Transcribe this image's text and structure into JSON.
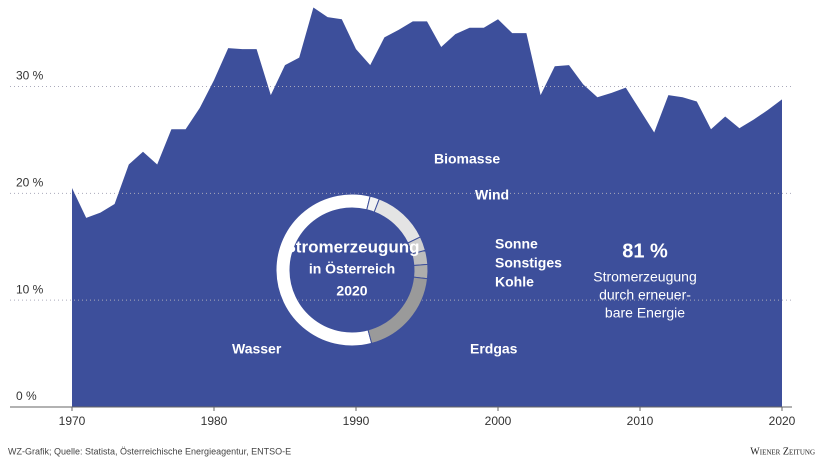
{
  "chart_data": [
    {
      "type": "area",
      "color": "#3d4f9b",
      "x": [
        1970,
        1971,
        1972,
        1973,
        1974,
        1975,
        1976,
        1977,
        1978,
        1979,
        1980,
        1981,
        1982,
        1983,
        1984,
        1985,
        1986,
        1987,
        1988,
        1989,
        1990,
        1991,
        1992,
        1993,
        1994,
        1995,
        1996,
        1997,
        1998,
        1999,
        2000,
        2001,
        2002,
        2003,
        2004,
        2005,
        2006,
        2007,
        2008,
        2009,
        2010,
        2011,
        2012,
        2013,
        2014,
        2015,
        2016,
        2017,
        2018,
        2019,
        2020
      ],
      "values": [
        20.5,
        17.7,
        18.2,
        19,
        22.7,
        23.9,
        22.7,
        26,
        26,
        28,
        30.6,
        33.6,
        33.5,
        33.5,
        29.2,
        32,
        32.7,
        37.4,
        36.5,
        36.3,
        33.5,
        32,
        34.6,
        35.3,
        36.1,
        36.1,
        33.7,
        34.9,
        35.5,
        35.5,
        36.3,
        35,
        35,
        29.2,
        31.9,
        32,
        30.2,
        29,
        29.4,
        29.9,
        27.8,
        25.7,
        29.2,
        29,
        28.6,
        26,
        27.2,
        26.1,
        26.9,
        27.8,
        28.8
      ],
      "xlim": [
        1970,
        2020
      ],
      "xticks": [
        1970,
        1980,
        1990,
        2000,
        2010,
        2020
      ],
      "ylim": [
        0,
        38.1
      ],
      "yticks": [
        {
          "value": 0,
          "label": "0 %"
        },
        {
          "value": 10,
          "label": "10 %"
        },
        {
          "value": 20,
          "label": "20 %"
        },
        {
          "value": 30,
          "label": "30 %"
        }
      ],
      "grid": true,
      "annotation": {
        "value": 81,
        "label": "81 %",
        "text": [
          "Stromerzeugung",
          "durch erneuer-",
          "bare Energie"
        ]
      }
    },
    {
      "type": "donut",
      "title": [
        "Stromerzeugung",
        "in Österreich",
        "2020"
      ],
      "categories": [
        "Wasser",
        "Biomasse",
        "Wind",
        "Sonne",
        "Sonstiges",
        "Kohle",
        "Erdgas"
      ],
      "values": [
        58,
        2,
        12,
        3,
        3,
        3,
        19
      ],
      "colors": [
        "#ffffff",
        "#f2f2f2",
        "#e4e4e4",
        "#cfcfcf",
        "#bdbdbd",
        "#adadad",
        "#9a9a9a"
      ]
    }
  ],
  "footer": {
    "source": "WZ-Grafik; Quelle: Statista, Österreichische Energieagentur, ENTSO-E",
    "brand": "Wiener Zeitung"
  }
}
